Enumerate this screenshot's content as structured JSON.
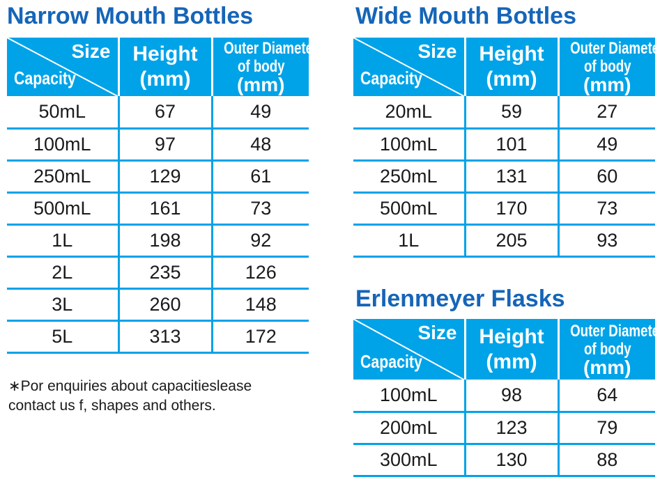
{
  "header_labels": {
    "size": "Size",
    "capacity": "Capacity",
    "height_line1": "Height",
    "height_line2": "(mm)",
    "od_line1": "Outer Diameter",
    "od_line2": "of body",
    "od_line3": "(mm)"
  },
  "narrow": {
    "title": "Narrow Mouth Bottles",
    "rows": [
      {
        "capacity": "50mL",
        "height": "67",
        "diameter": "49"
      },
      {
        "capacity": "100mL",
        "height": "97",
        "diameter": "48"
      },
      {
        "capacity": "250mL",
        "height": "129",
        "diameter": "61"
      },
      {
        "capacity": "500mL",
        "height": "161",
        "diameter": "73"
      },
      {
        "capacity": "1L",
        "height": "198",
        "diameter": "92"
      },
      {
        "capacity": "2L",
        "height": "235",
        "diameter": "126"
      },
      {
        "capacity": "3L",
        "height": "260",
        "diameter": "148"
      },
      {
        "capacity": "5L",
        "height": "313",
        "diameter": "172"
      }
    ]
  },
  "wide": {
    "title": "Wide Mouth Bottles",
    "rows": [
      {
        "capacity": "20mL",
        "height": "59",
        "diameter": "27"
      },
      {
        "capacity": "100mL",
        "height": "101",
        "diameter": "49"
      },
      {
        "capacity": "250mL",
        "height": "131",
        "diameter": "60"
      },
      {
        "capacity": "500mL",
        "height": "170",
        "diameter": "73"
      },
      {
        "capacity": "1L",
        "height": "205",
        "diameter": "93"
      }
    ]
  },
  "erlenmeyer": {
    "title": "Erlenmeyer Flasks",
    "rows": [
      {
        "capacity": "100mL",
        "height": "98",
        "diameter": "64"
      },
      {
        "capacity": "200mL",
        "height": "123",
        "diameter": "79"
      },
      {
        "capacity": "300mL",
        "height": "130",
        "diameter": "88"
      }
    ]
  },
  "note": {
    "line1": "∗Por enquiries about capacitieslease",
    "line2": "contact us f, shapes and others."
  },
  "colors": {
    "title": "#1565b8",
    "header_bg": "#00a3e8",
    "rule": "#00a3e8",
    "header_text": "#ffffff"
  }
}
